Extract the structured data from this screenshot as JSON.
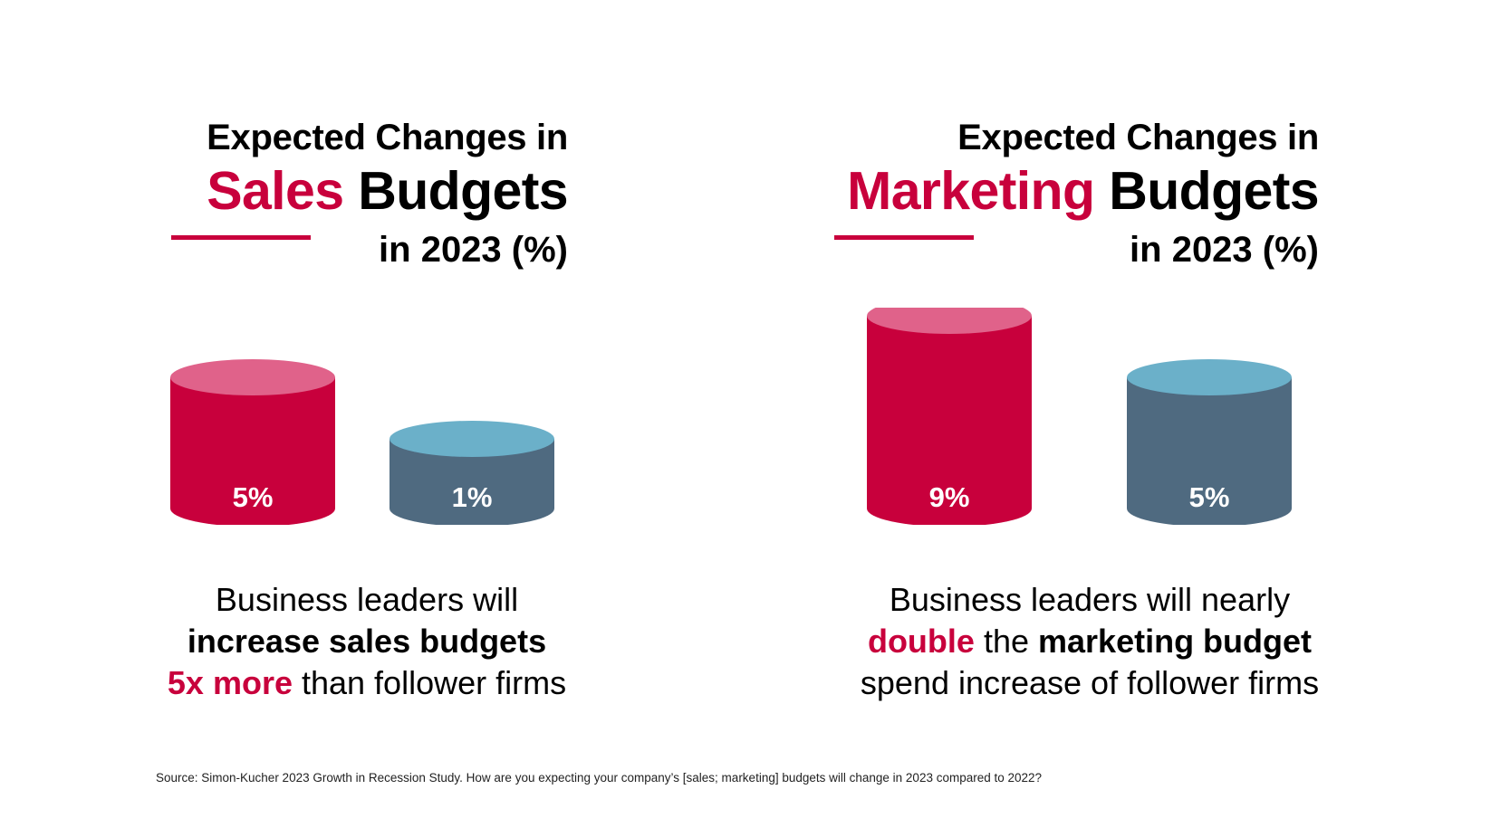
{
  "colors": {
    "accent": "#c8003c",
    "accent_top": "#e0628a",
    "follower": "#4f6a80",
    "follower_top": "#6bb0c9"
  },
  "panels": [
    {
      "title_line1": "Expected Changes in",
      "title_accent": "Sales",
      "title_rest": " Budgets",
      "title_line3": "in 2023 (%)",
      "caption_l1": "Business leaders will",
      "caption_b1": "increase sales budgets",
      "caption_a1": "5x more",
      "caption_t1": " than follower firms"
    },
    {
      "title_line1": "Expected Changes in",
      "title_accent": "Marketing",
      "title_rest": " Budgets",
      "title_line3": "in 2023 (%)",
      "caption_l1": "Business leaders will nearly",
      "caption_a1": "double",
      "caption_t1": " the ",
      "caption_b1": "marketing budget",
      "caption_t2": "spend increase of follower firms"
    }
  ],
  "chart_data": [
    {
      "type": "bar",
      "categories": [
        "",
        ""
      ],
      "values": [
        5,
        1
      ],
      "labels": [
        "5%",
        "1%"
      ],
      "title": "Expected Changes in Sales Budgets in 2023 (%)"
    },
    {
      "type": "bar",
      "categories": [
        "",
        ""
      ],
      "values": [
        9,
        5
      ],
      "labels": [
        "9%",
        "5%"
      ],
      "title": "Expected Changes in Marketing Budgets in 2023 (%)"
    }
  ],
  "source": "Source: Simon-Kucher 2023 Growth in Recession Study. How are you expecting your company’s [sales; marketing] budgets will change in 2023 compared to 2022?"
}
